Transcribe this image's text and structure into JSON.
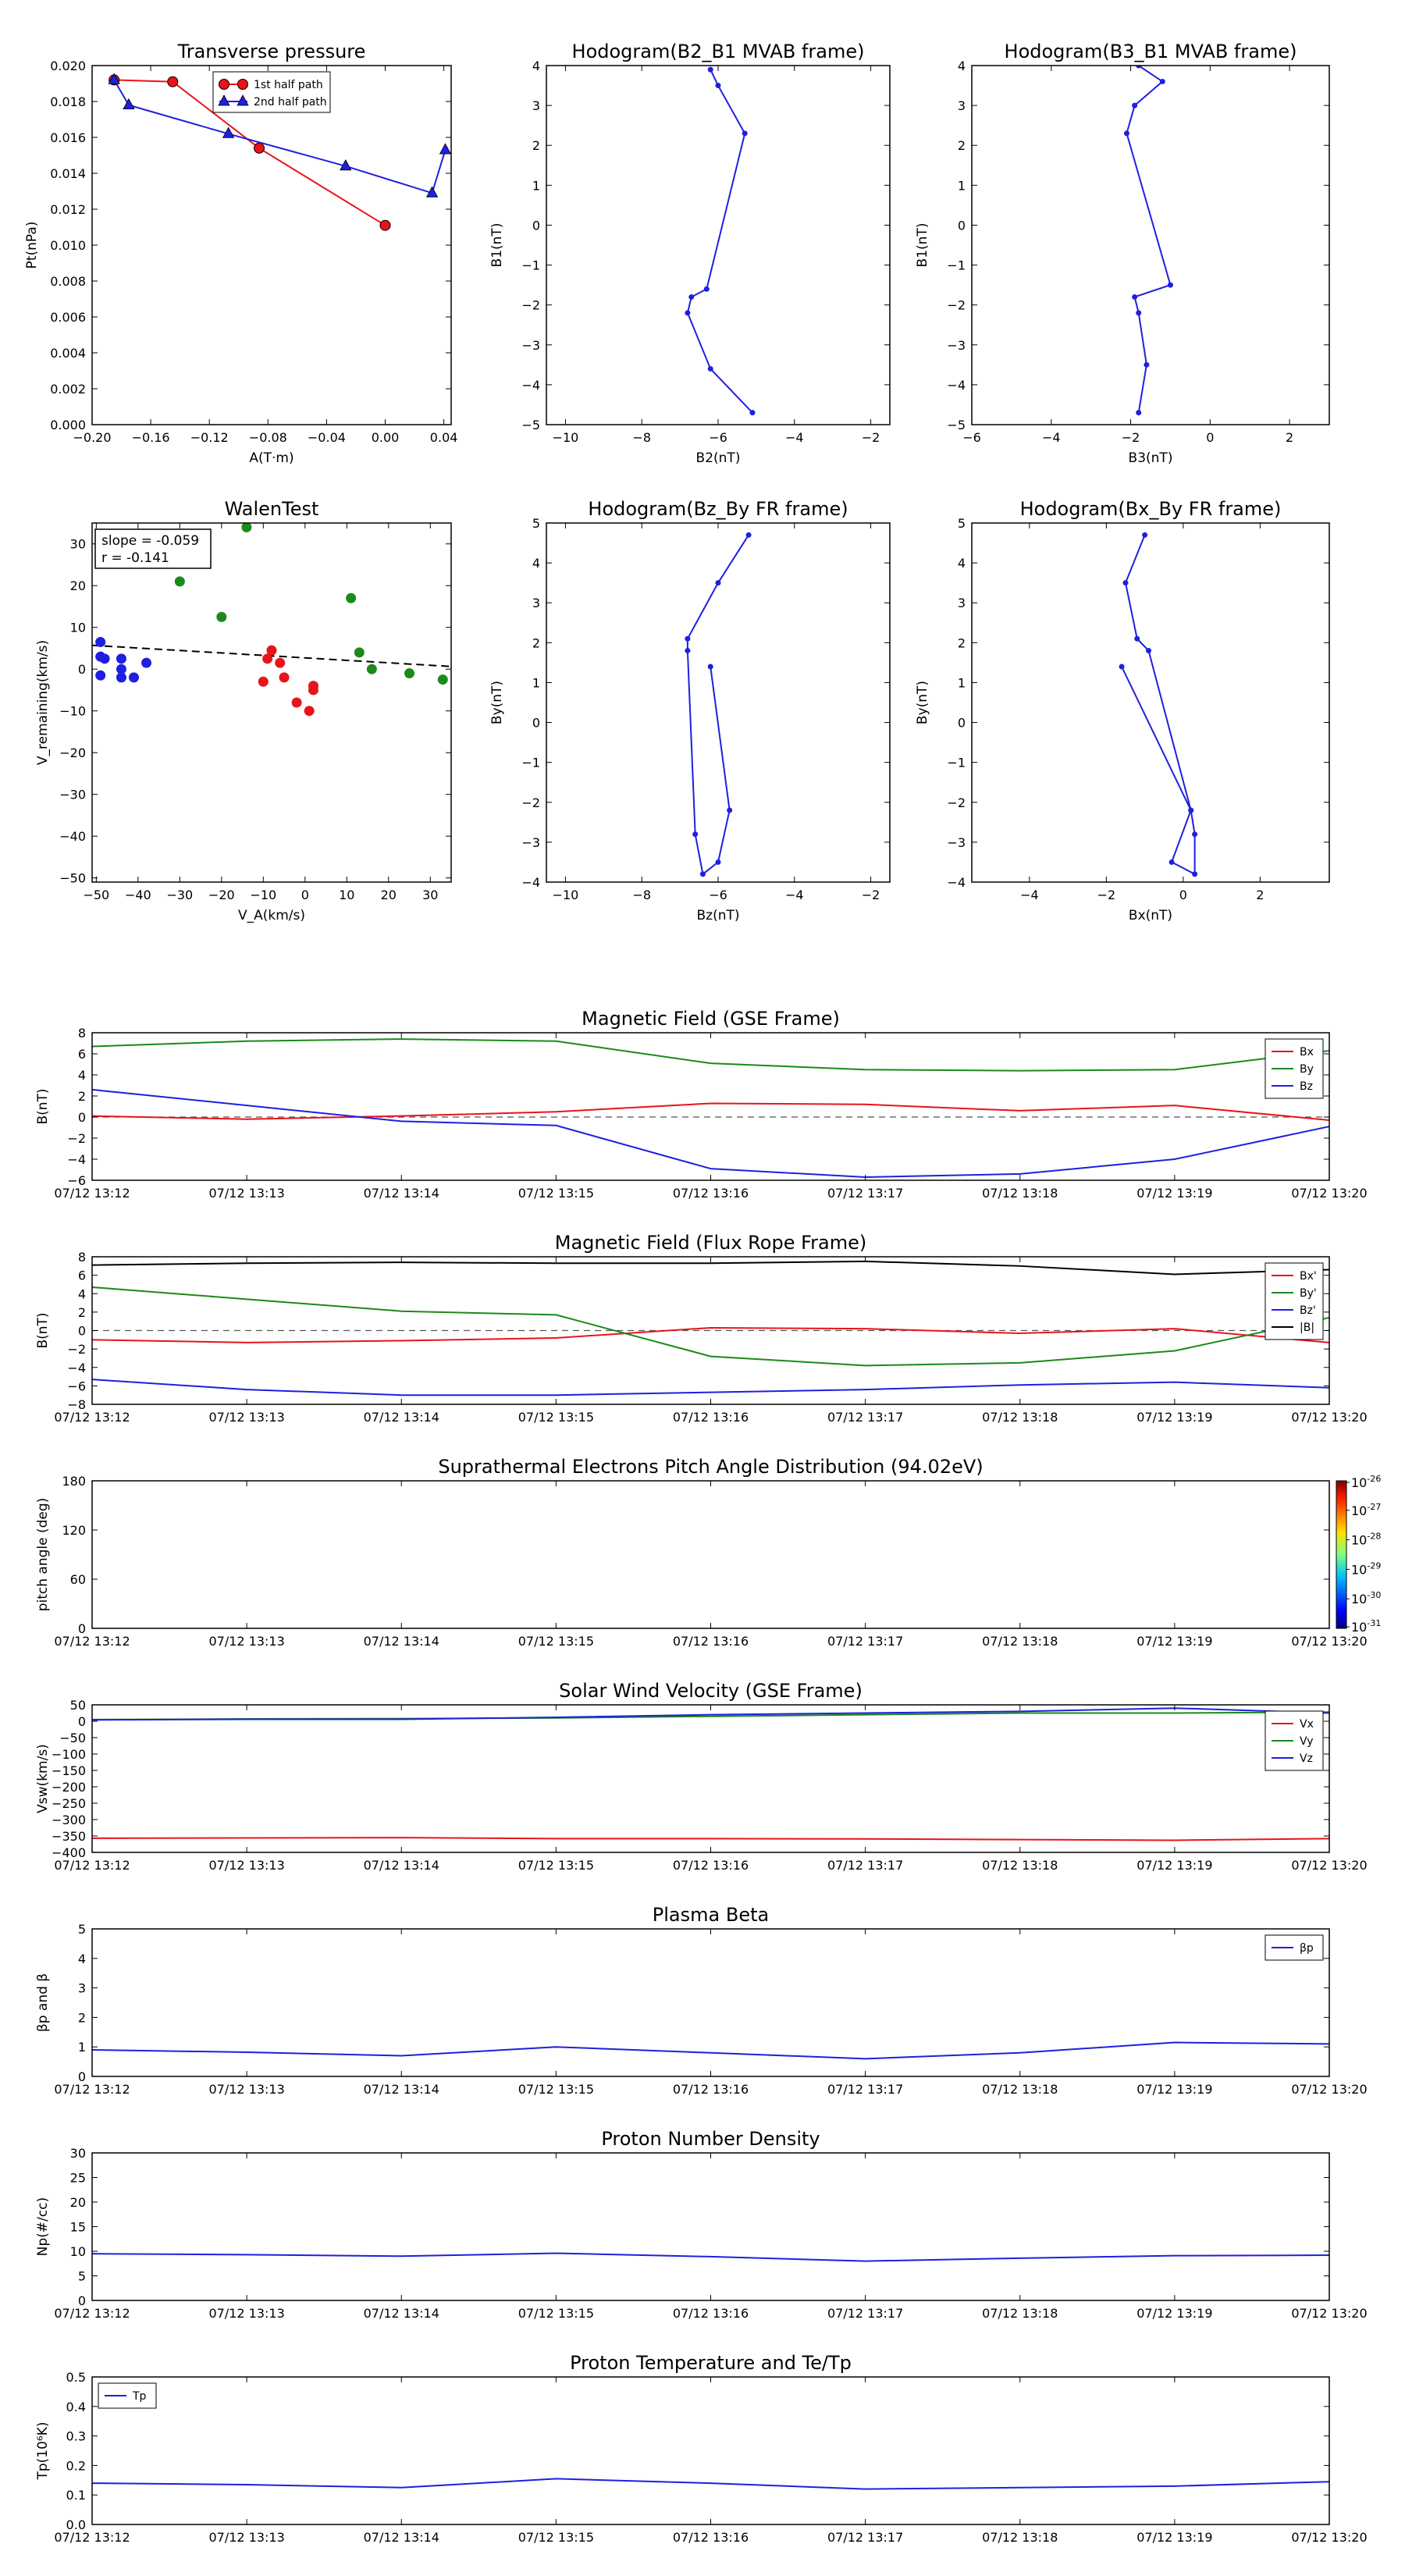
{
  "chart_data": [
    {
      "id": "transverse",
      "type": "line",
      "title": "Transverse pressure",
      "xlabel": "A(T·m)",
      "ylabel": "Pt(nPa)",
      "xlim": [
        -0.2,
        0.045
      ],
      "ylim": [
        0.0,
        0.02
      ],
      "xticks": [
        -0.2,
        -0.16,
        -0.12,
        -0.08,
        -0.04,
        0.0,
        0.04
      ],
      "xtick_labels": [
        "−0.20",
        "−0.16",
        "−0.12",
        "−0.08",
        "−0.04",
        "0.00",
        "0.04"
      ],
      "yticks": [
        0,
        0.002,
        0.004,
        0.006,
        0.008,
        0.01,
        0.012,
        0.014,
        0.016,
        0.018,
        0.02
      ],
      "ytick_labels": [
        "0.000",
        "0.002",
        "0.004",
        "0.006",
        "0.008",
        "0.010",
        "0.012",
        "0.014",
        "0.016",
        "0.018",
        "0.020"
      ],
      "legend_loc": "top-center",
      "series": [
        {
          "name": "1st half path",
          "color": "#e8141b",
          "marker": "circle",
          "x": [
            0.0,
            -0.086,
            -0.145,
            -0.185
          ],
          "y": [
            0.0111,
            0.0154,
            0.0191,
            0.0192
          ]
        },
        {
          "name": "2nd half path",
          "color": "#1f1fe0",
          "marker": "triangle",
          "x": [
            -0.185,
            -0.175,
            -0.107,
            -0.027,
            0.032,
            0.041
          ],
          "y": [
            0.0192,
            0.0178,
            0.0162,
            0.0144,
            0.0129,
            0.0153
          ]
        }
      ]
    },
    {
      "id": "hodo-b2b1",
      "type": "line",
      "title": "Hodogram(B2_B1 MVAB frame)",
      "xlabel": "B2(nT)",
      "ylabel": "B1(nT)",
      "xlim": [
        -10.5,
        -1.5
      ],
      "ylim": [
        -5,
        4
      ],
      "xticks": [
        -10,
        -8,
        -6,
        -4,
        -2
      ],
      "xtick_labels": [
        "−10",
        "−8",
        "−6",
        "−4",
        "−2"
      ],
      "yticks": [
        -5,
        -4,
        -3,
        -2,
        -1,
        0,
        1,
        2,
        3,
        4
      ],
      "ytick_labels": [
        "−5",
        "−4",
        "−3",
        "−2",
        "−1",
        "0",
        "1",
        "2",
        "3",
        "4"
      ],
      "series": [
        {
          "color": "#1f1fe0",
          "marker": "dot",
          "x": [
            -6.2,
            -6.0,
            -5.3,
            -6.3,
            -6.7,
            -6.8,
            -6.2,
            -5.1
          ],
          "y": [
            3.9,
            3.5,
            2.3,
            -1.6,
            -1.8,
            -2.2,
            -3.6,
            -4.7
          ]
        }
      ]
    },
    {
      "id": "hodo-b3b1",
      "type": "line",
      "title": "Hodogram(B3_B1 MVAB frame)",
      "xlabel": "B3(nT)",
      "ylabel": "B1(nT)",
      "xlim": [
        -6,
        3
      ],
      "ylim": [
        -5,
        4
      ],
      "xticks": [
        -6,
        -4,
        -2,
        0,
        2
      ],
      "xtick_labels": [
        "−6",
        "−4",
        "−2",
        "0",
        "2"
      ],
      "yticks": [
        -5,
        -4,
        -3,
        -2,
        -1,
        0,
        1,
        2,
        3,
        4
      ],
      "ytick_labels": [
        "−5",
        "−4",
        "−3",
        "−2",
        "−1",
        "0",
        "1",
        "2",
        "3",
        "4"
      ],
      "series": [
        {
          "color": "#1f1fe0",
          "marker": "dot",
          "x": [
            -1.8,
            -1.2,
            -1.9,
            -2.1,
            -1.0,
            -1.9,
            -1.8,
            -1.6,
            -1.8
          ],
          "y": [
            4.0,
            3.6,
            3.0,
            2.3,
            -1.5,
            -1.8,
            -2.2,
            -3.5,
            -4.7
          ]
        }
      ]
    },
    {
      "id": "walen",
      "type": "scatter",
      "title": "WalenTest",
      "xlabel": "V_A(km/s)",
      "ylabel": "V_remaining(km/s)",
      "xlim": [
        -51,
        35
      ],
      "ylim": [
        -51,
        35
      ],
      "xticks": [
        -50,
        -40,
        -30,
        -20,
        -10,
        0,
        10,
        20,
        30
      ],
      "xtick_labels": [
        "−50",
        "−40",
        "−30",
        "−20",
        "−10",
        "0",
        "10",
        "20",
        "30"
      ],
      "yticks": [
        -50,
        -40,
        -30,
        -20,
        -10,
        0,
        10,
        20,
        30
      ],
      "ytick_labels": [
        "−50",
        "−40",
        "−30",
        "−20",
        "−10",
        "0",
        "10",
        "20",
        "30"
      ],
      "annotation": [
        "slope = -0.059",
        "r = -0.141"
      ],
      "fit": {
        "slope": -0.059,
        "intercept": 2.7,
        "color": "#000000",
        "style": "dashed"
      },
      "series": [
        {
          "color": "#1f1fe0",
          "x": [
            -49,
            -49,
            -48,
            -49,
            -44,
            -44,
            -44,
            -41,
            -38
          ],
          "y": [
            6.5,
            3,
            2.5,
            -1.5,
            2.5,
            0,
            -2,
            -2,
            1.5
          ]
        },
        {
          "color": "#e8141b",
          "x": [
            -8,
            -6,
            -10,
            -5,
            -9,
            2,
            2,
            -2,
            1
          ],
          "y": [
            4.5,
            1.5,
            -3,
            -2,
            2.5,
            -4,
            -5,
            -8,
            -10
          ]
        },
        {
          "color": "#1a8a1a",
          "x": [
            -14,
            -30,
            -20,
            11,
            13,
            16,
            25,
            33
          ],
          "y": [
            34,
            21,
            12.5,
            17,
            4,
            0,
            -1,
            -2.5
          ]
        }
      ]
    },
    {
      "id": "hodo-bzby",
      "type": "line",
      "title": "Hodogram(Bz_By FR frame)",
      "xlabel": "Bz(nT)",
      "ylabel": "By(nT)",
      "xlim": [
        -10.5,
        -1.5
      ],
      "ylim": [
        -4,
        5
      ],
      "xticks": [
        -10,
        -8,
        -6,
        -4,
        -2
      ],
      "xtick_labels": [
        "−10",
        "−8",
        "−6",
        "−4",
        "−2"
      ],
      "yticks": [
        -4,
        -3,
        -2,
        -1,
        0,
        1,
        2,
        3,
        4,
        5
      ],
      "ytick_labels": [
        "−4",
        "−3",
        "−2",
        "−1",
        "0",
        "1",
        "2",
        "3",
        "4",
        "5"
      ],
      "series": [
        {
          "color": "#1f1fe0",
          "marker": "dot",
          "x": [
            -5.2,
            -6.0,
            -6.8,
            -6.8,
            -6.6,
            -6.4,
            -6.0,
            -5.7,
            -6.2
          ],
          "y": [
            4.7,
            3.5,
            2.1,
            1.8,
            -2.8,
            -3.8,
            -3.5,
            -2.2,
            1.4
          ]
        }
      ]
    },
    {
      "id": "hodo-bxby",
      "type": "line",
      "title": "Hodogram(Bx_By FR frame)",
      "xlabel": "Bx(nT)",
      "ylabel": "By(nT)",
      "xlim": [
        -5.5,
        3.8
      ],
      "ylim": [
        -4,
        5
      ],
      "xticks": [
        -4,
        -2,
        0,
        2
      ],
      "xtick_labels": [
        "−4",
        "−2",
        "0",
        "2"
      ],
      "yticks": [
        -4,
        -3,
        -2,
        -1,
        0,
        1,
        2,
        3,
        4,
        5
      ],
      "ytick_labels": [
        "−4",
        "−3",
        "−2",
        "−1",
        "0",
        "1",
        "2",
        "3",
        "4",
        "5"
      ],
      "series": [
        {
          "color": "#1f1fe0",
          "marker": "dot",
          "x": [
            -1.0,
            -1.5,
            -1.2,
            -0.9,
            0.2,
            0.3,
            0.3,
            -0.3,
            0.2,
            -1.6
          ],
          "y": [
            4.7,
            3.5,
            2.1,
            1.8,
            -2.2,
            -2.8,
            -3.8,
            -3.5,
            -2.2,
            1.4
          ]
        }
      ]
    },
    {
      "id": "mag-gse",
      "type": "line",
      "title": "Magnetic Field (GSE Frame)",
      "ylabel": "B(nT)",
      "xlim": [
        0,
        8
      ],
      "ylim": [
        -6,
        8
      ],
      "yticks": [
        -6,
        -4,
        -2,
        0,
        2,
        4,
        6,
        8
      ],
      "ytick_labels": [
        "−6",
        "−4",
        "−2",
        "0",
        "2",
        "4",
        "6",
        "8"
      ],
      "xtick_labels": [
        "07/12 13:12",
        "07/12 13:13",
        "07/12 13:14",
        "07/12 13:15",
        "07/12 13:16",
        "07/12 13:17",
        "07/12 13:18",
        "07/12 13:19",
        "07/12 13:20"
      ],
      "zero_line": true,
      "x": [
        0,
        1,
        2,
        3,
        4,
        5,
        6,
        7,
        8
      ],
      "series": [
        {
          "name": "Bx",
          "color": "#e8141b",
          "values": [
            0.1,
            -0.2,
            0.1,
            0.5,
            1.3,
            1.2,
            0.6,
            1.1,
            -0.3
          ]
        },
        {
          "name": "By",
          "color": "#1a8a1a",
          "values": [
            6.7,
            7.2,
            7.4,
            7.2,
            5.1,
            4.5,
            4.4,
            4.5,
            6.3
          ]
        },
        {
          "name": "Bz",
          "color": "#1f1fe0",
          "values": [
            2.6,
            1.1,
            -0.4,
            -0.8,
            -4.9,
            -5.7,
            -5.4,
            -4.0,
            -0.9
          ]
        }
      ]
    },
    {
      "id": "mag-fr",
      "type": "line",
      "title": "Magnetic Field (Flux Rope Frame)",
      "ylabel": "B(nT)",
      "xlim": [
        0,
        8
      ],
      "ylim": [
        -8,
        8
      ],
      "yticks": [
        -8,
        -6,
        -4,
        -2,
        0,
        2,
        4,
        6,
        8
      ],
      "ytick_labels": [
        "−8",
        "−6",
        "−4",
        "−2",
        "0",
        "2",
        "4",
        "6",
        "8"
      ],
      "xtick_labels": [
        "07/12 13:12",
        "07/12 13:13",
        "07/12 13:14",
        "07/12 13:15",
        "07/12 13:16",
        "07/12 13:17",
        "07/12 13:18",
        "07/12 13:19",
        "07/12 13:20"
      ],
      "zero_line": true,
      "x": [
        0,
        1,
        2,
        3,
        4,
        5,
        6,
        7,
        8
      ],
      "series": [
        {
          "name": "Bx'",
          "color": "#e8141b",
          "values": [
            -1.0,
            -1.3,
            -1.1,
            -0.8,
            0.3,
            0.2,
            -0.3,
            0.2,
            -1.3
          ]
        },
        {
          "name": "By'",
          "color": "#1a8a1a",
          "values": [
            4.7,
            3.4,
            2.1,
            1.7,
            -2.8,
            -3.8,
            -3.5,
            -2.2,
            1.4
          ]
        },
        {
          "name": "Bz'",
          "color": "#1f1fe0",
          "values": [
            -5.3,
            -6.4,
            -7.0,
            -7.0,
            -6.7,
            -6.4,
            -5.9,
            -5.6,
            -6.2
          ]
        },
        {
          "name": "|B|",
          "color": "#000000",
          "values": [
            7.1,
            7.3,
            7.4,
            7.3,
            7.3,
            7.5,
            7.0,
            6.1,
            6.6
          ]
        }
      ]
    },
    {
      "id": "pad",
      "type": "heatmap",
      "title": "Suprathermal Electrons Pitch Angle Distribution (94.02eV)",
      "ylabel": "pitch angle (deg)",
      "xlim": [
        0,
        8
      ],
      "ylim": [
        0,
        180
      ],
      "yticks": [
        0,
        60,
        120,
        180
      ],
      "ytick_labels": [
        "0",
        "60",
        "120",
        "180"
      ],
      "xtick_labels": [
        "07/12 13:12",
        "07/12 13:13",
        "07/12 13:14",
        "07/12 13:15",
        "07/12 13:16",
        "07/12 13:17",
        "07/12 13:18",
        "07/12 13:19",
        "07/12 13:20"
      ],
      "colorbar_exponents": [
        "-26",
        "-27",
        "-28",
        "-29",
        "-30",
        "-31"
      ],
      "colorbar_base": "10"
    },
    {
      "id": "vsw",
      "type": "line",
      "title": "Solar Wind Velocity (GSE Frame)",
      "ylabel": "Vsw(km/s)",
      "xlim": [
        0,
        8
      ],
      "ylim": [
        -400,
        50
      ],
      "yticks": [
        -400,
        -350,
        -300,
        -250,
        -200,
        -150,
        -100,
        -50,
        0,
        50
      ],
      "ytick_labels": [
        "−400",
        "−350",
        "−300",
        "−250",
        "−200",
        "−150",
        "−100",
        "−50",
        "0",
        "50"
      ],
      "xtick_labels": [
        "07/12 13:12",
        "07/12 13:13",
        "07/12 13:14",
        "07/12 13:15",
        "07/12 13:16",
        "07/12 13:17",
        "07/12 13:18",
        "07/12 13:19",
        "07/12 13:20"
      ],
      "x": [
        0,
        1,
        2,
        3,
        4,
        5,
        6,
        7,
        8
      ],
      "series": [
        {
          "name": "Vx",
          "color": "#e8141b",
          "values": [
            -357,
            -356,
            -355,
            -358,
            -358,
            -359,
            -361,
            -363,
            -358
          ]
        },
        {
          "name": "Vy",
          "color": "#1a8a1a",
          "values": [
            5,
            7,
            8,
            10,
            15,
            20,
            25,
            25,
            28
          ]
        },
        {
          "name": "Vz",
          "color": "#1f1fe0",
          "values": [
            4,
            6,
            6,
            12,
            20,
            25,
            30,
            40,
            25
          ]
        }
      ]
    },
    {
      "id": "beta",
      "type": "line",
      "title": "Plasma Beta",
      "ylabel": "βp and β",
      "xlim": [
        0,
        8
      ],
      "ylim": [
        0,
        5
      ],
      "yticks": [
        0,
        1,
        2,
        3,
        4,
        5
      ],
      "ytick_labels": [
        "0",
        "1",
        "2",
        "3",
        "4",
        "5"
      ],
      "xtick_labels": [
        "07/12 13:12",
        "07/12 13:13",
        "07/12 13:14",
        "07/12 13:15",
        "07/12 13:16",
        "07/12 13:17",
        "07/12 13:18",
        "07/12 13:19",
        "07/12 13:20"
      ],
      "x": [
        0,
        1,
        2,
        3,
        4,
        5,
        6,
        7,
        8
      ],
      "series": [
        {
          "name": "βp",
          "color": "#1f1fe0",
          "values": [
            0.9,
            0.82,
            0.7,
            1.0,
            0.8,
            0.6,
            0.8,
            1.15,
            1.1
          ]
        }
      ]
    },
    {
      "id": "np",
      "type": "line",
      "title": "Proton Number Density",
      "ylabel": "Np(#/cc)",
      "xlim": [
        0,
        8
      ],
      "ylim": [
        0,
        30
      ],
      "yticks": [
        0,
        5,
        10,
        15,
        20,
        25,
        30
      ],
      "ytick_labels": [
        "0",
        "5",
        "10",
        "15",
        "20",
        "25",
        "30"
      ],
      "xtick_labels": [
        "07/12 13:12",
        "07/12 13:13",
        "07/12 13:14",
        "07/12 13:15",
        "07/12 13:16",
        "07/12 13:17",
        "07/12 13:18",
        "07/12 13:19",
        "07/12 13:20"
      ],
      "x": [
        0,
        1,
        2,
        3,
        4,
        5,
        6,
        7,
        8
      ],
      "series": [
        {
          "color": "#1f1fe0",
          "values": [
            9.5,
            9.3,
            9.0,
            9.6,
            8.9,
            8.0,
            8.6,
            9.1,
            9.2
          ]
        }
      ]
    },
    {
      "id": "tp",
      "type": "line",
      "title": "Proton Temperature and Te/Tp",
      "ylabel": "Tp(10⁶K)",
      "xlim": [
        0,
        8
      ],
      "ylim": [
        0,
        0.5
      ],
      "yticks": [
        0,
        0.1,
        0.2,
        0.3,
        0.4,
        0.5
      ],
      "ytick_labels": [
        "0.0",
        "0.1",
        "0.2",
        "0.3",
        "0.4",
        "0.5"
      ],
      "xtick_labels": [
        "07/12 13:12",
        "07/12 13:13",
        "07/12 13:14",
        "07/12 13:15",
        "07/12 13:16",
        "07/12 13:17",
        "07/12 13:18",
        "07/12 13:19",
        "07/12 13:20"
      ],
      "x": [
        0,
        1,
        2,
        3,
        4,
        5,
        6,
        7,
        8
      ],
      "series": [
        {
          "name": "Tp",
          "color": "#1f1fe0",
          "values": [
            0.14,
            0.135,
            0.125,
            0.155,
            0.14,
            0.12,
            0.125,
            0.13,
            0.145
          ]
        }
      ]
    }
  ]
}
